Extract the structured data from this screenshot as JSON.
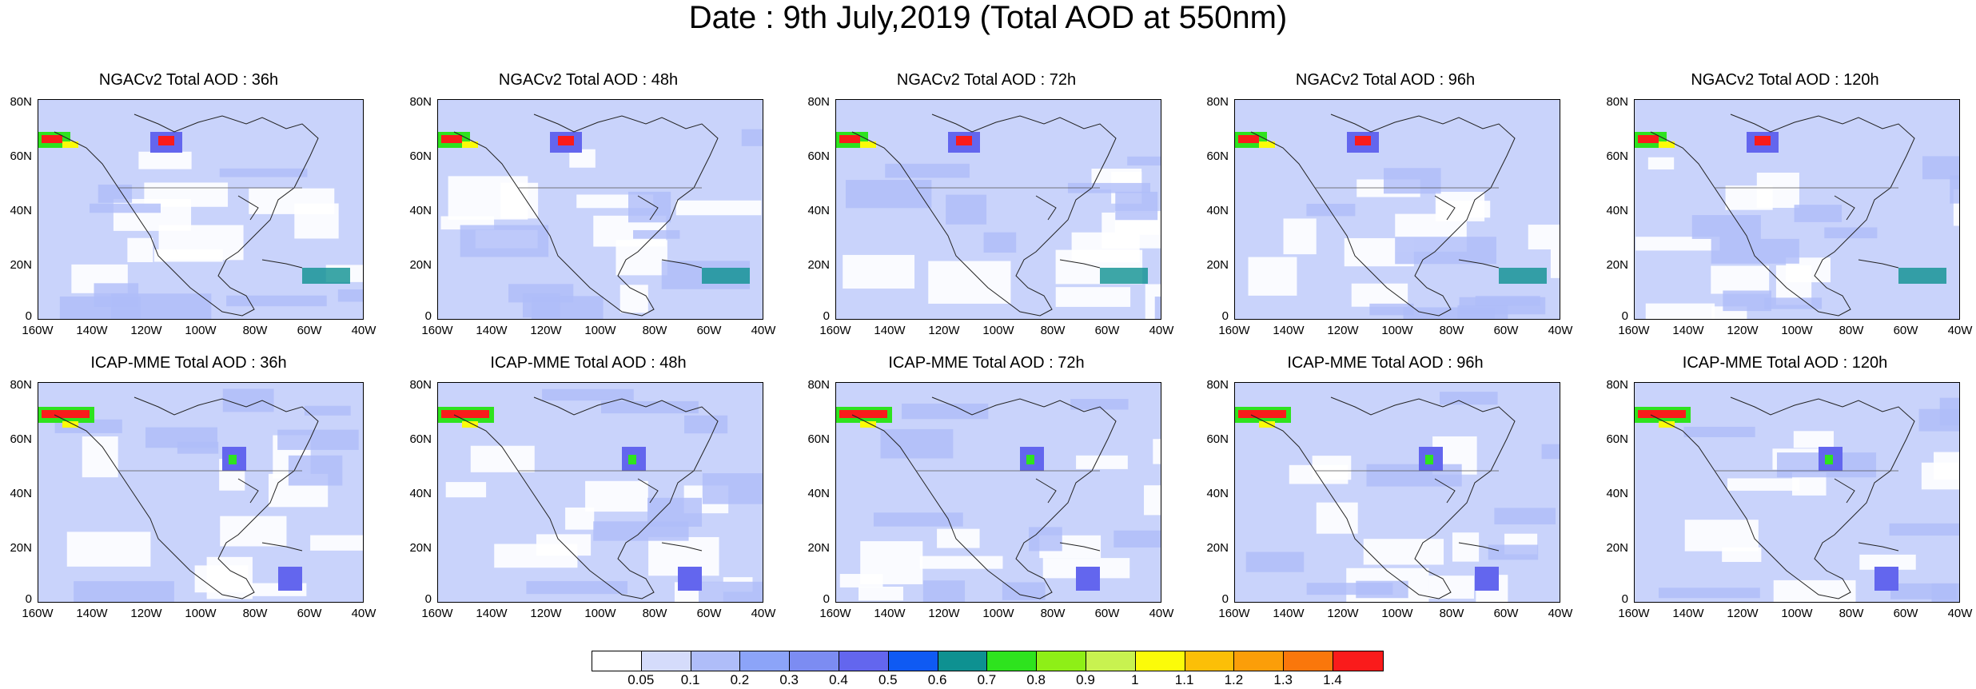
{
  "title": "Date : 9th July,2019 (Total AOD at 550nm)",
  "y_ticks": [
    "80N",
    "60N",
    "40N",
    "20N",
    "0"
  ],
  "x_ticks": [
    "160W",
    "140W",
    "120W",
    "100W",
    "80W",
    "60W",
    "40W"
  ],
  "panels": [
    {
      "title": "NGACv2 Total AOD : 36h"
    },
    {
      "title": "NGACv2 Total AOD : 48h"
    },
    {
      "title": "NGACv2 Total AOD : 72h"
    },
    {
      "title": "NGACv2 Total AOD : 96h"
    },
    {
      "title": "NGACv2 Total AOD : 120h"
    },
    {
      "title": "ICAP-MME Total AOD : 36h"
    },
    {
      "title": "ICAP-MME Total AOD : 48h"
    },
    {
      "title": "ICAP-MME Total AOD : 72h"
    },
    {
      "title": "ICAP-MME Total AOD : 96h"
    },
    {
      "title": "ICAP-MME Total AOD : 120h"
    }
  ],
  "colorbar": {
    "colors": [
      "#ffffff",
      "#d5dcfb",
      "#afbdf9",
      "#8ca4f8",
      "#7c8cf2",
      "#6366ee",
      "#0f5af3",
      "#0e9191",
      "#2ee31e",
      "#8eef17",
      "#c8f250",
      "#fbfb09",
      "#fcbf07",
      "#fb9e09",
      "#fa770b",
      "#fa1b1b"
    ],
    "labels": [
      "0.05",
      "0.1",
      "0.2",
      "0.3",
      "0.4",
      "0.5",
      "0.6",
      "0.7",
      "0.8",
      "0.9",
      "1",
      "1.1",
      "1.2",
      "1.3",
      "1.4"
    ]
  }
}
